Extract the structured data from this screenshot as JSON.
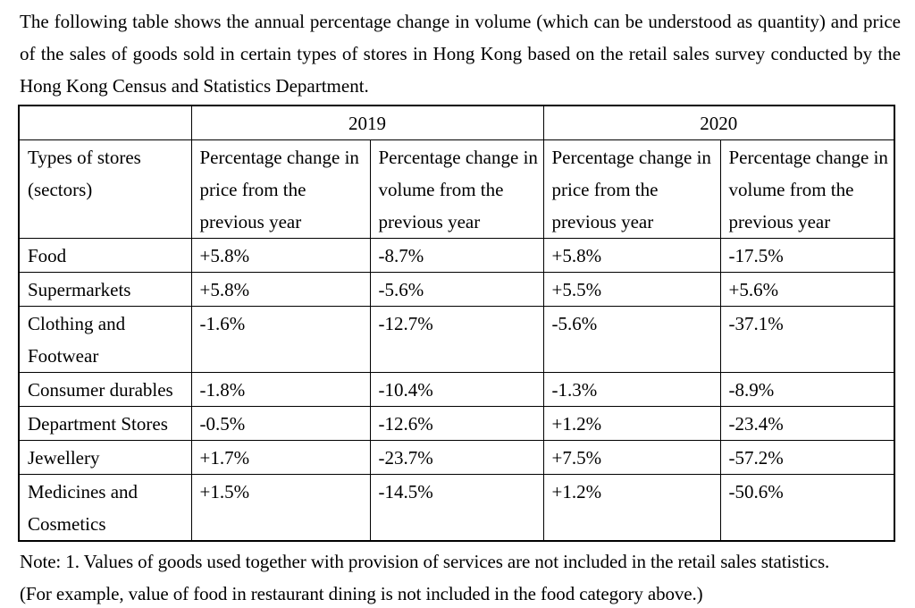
{
  "document": {
    "intro": "The following table shows the annual percentage change in volume (which can be understood as quantity) and price of the sales of goods sold in certain types of stores in Hong Kong based on the retail sales survey conducted by the Hong Kong Census and Statistics Department.",
    "table": {
      "year_headers": [
        "2019",
        "2020"
      ],
      "row_header": "Types of stores (sectors)",
      "col_headers": [
        "Percentage change in price from the previous year",
        "Percentage change in volume from the previous year",
        "Percentage change in price from the previous year",
        "Percentage change in volume from the previous year"
      ],
      "rows": [
        {
          "sector": "Food",
          "p2019": "+5.8%",
          "v2019": "-8.7%",
          "p2020": "+5.8%",
          "v2020": "-17.5%"
        },
        {
          "sector": "Supermarkets",
          "p2019": "+5.8%",
          "v2019": "-5.6%",
          "p2020": "+5.5%",
          "v2020": "+5.6%"
        },
        {
          "sector": "Clothing and Footwear",
          "p2019": "-1.6%",
          "v2019": "-12.7%",
          "p2020": "-5.6%",
          "v2020": "-37.1%"
        },
        {
          "sector": "Consumer durables",
          "p2019": "-1.8%",
          "v2019": "-10.4%",
          "p2020": "-1.3%",
          "v2020": "-8.9%"
        },
        {
          "sector": "Department Stores",
          "p2019": "-0.5%",
          "v2019": "-12.6%",
          "p2020": "+1.2%",
          "v2020": "-23.4%"
        },
        {
          "sector": "Jewellery",
          "p2019": "+1.7%",
          "v2019": "-23.7%",
          "p2020": "+7.5%",
          "v2020": "-57.2%"
        },
        {
          "sector": "Medicines and Cosmetics",
          "p2019": "+1.5%",
          "v2019": "-14.5%",
          "p2020": "+1.2%",
          "v2020": "-50.6%"
        }
      ]
    },
    "notes": [
      "Note: 1. Values of goods used together with provision of services are not included in the retail sales statistics.",
      "(For example, value of food in restaurant dining is not included in the food category above.)"
    ]
  }
}
